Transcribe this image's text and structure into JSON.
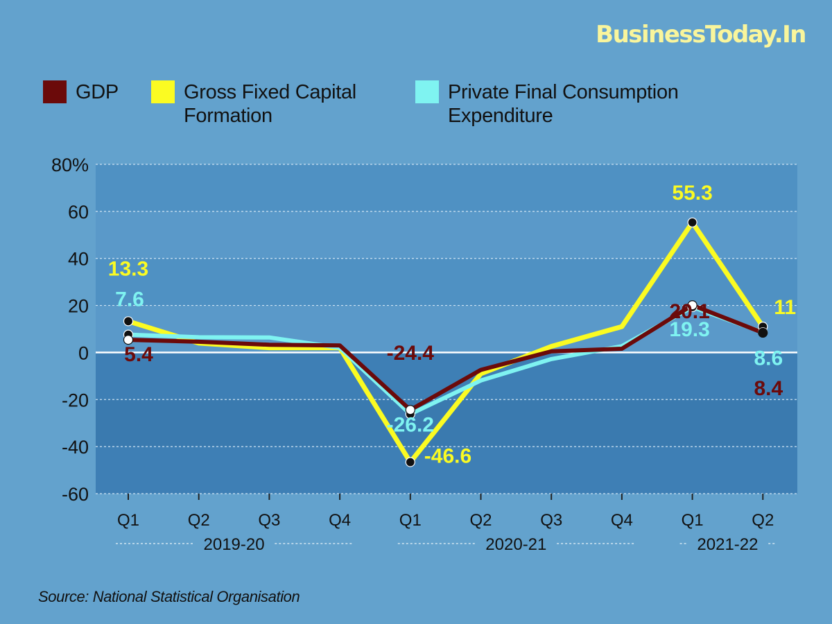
{
  "brand": {
    "name": "BusinessToday.In"
  },
  "legend": [
    {
      "label": "GDP",
      "color": "#6b0a0a"
    },
    {
      "label": "Gross Fixed Capital Formation",
      "color": "#fbfb22"
    },
    {
      "label": "Private Final Consumption Expenditure",
      "color": "#7ff3f1"
    }
  ],
  "source": "Source: National Statistical Organisation",
  "chart_data": {
    "type": "line",
    "x": [
      "Q1",
      "Q2",
      "Q3",
      "Q4",
      "Q1",
      "Q2",
      "Q3",
      "Q4",
      "Q1",
      "Q2"
    ],
    "groups": [
      {
        "label": "2019-20",
        "span": [
          0,
          3
        ]
      },
      {
        "label": "2020-21",
        "span": [
          4,
          7
        ]
      },
      {
        "label": "2021-22",
        "span": [
          8,
          9
        ]
      }
    ],
    "y_ticks": [
      "80%",
      "60",
      "40",
      "20",
      "0",
      "-20",
      "-40",
      "-60"
    ],
    "ylim": [
      -60,
      80
    ],
    "grid": true,
    "series": [
      {
        "name": "Gross Fixed Capital Formation",
        "color": "#fbfb22",
        "values": [
          13.3,
          4.0,
          2.0,
          2.0,
          -46.6,
          -9.0,
          2.6,
          11.0,
          55.3,
          11.0
        ],
        "labels": [
          {
            "index": 0,
            "text": "13.3"
          },
          {
            "index": 4,
            "text": "-46.6"
          },
          {
            "index": 8,
            "text": "55.3"
          },
          {
            "index": 9,
            "text": "11"
          }
        ]
      },
      {
        "name": "Private Final Consumption Expenditure",
        "color": "#7ff3f1",
        "values": [
          7.6,
          6.5,
          6.4,
          2.0,
          -26.2,
          -11.9,
          -2.8,
          2.7,
          19.3,
          8.6
        ],
        "labels": [
          {
            "index": 0,
            "text": "7.6"
          },
          {
            "index": 4,
            "text": "-26.2"
          },
          {
            "index": 8,
            "text": "19.3"
          },
          {
            "index": 9,
            "text": "8.6"
          }
        ]
      },
      {
        "name": "GDP",
        "color": "#6b0a0a",
        "values": [
          5.4,
          4.6,
          3.3,
          3.0,
          -24.4,
          -7.4,
          0.5,
          1.6,
          20.1,
          8.4
        ],
        "labels": [
          {
            "index": 0,
            "text": "5.4"
          },
          {
            "index": 4,
            "text": "-24.4"
          },
          {
            "index": 8,
            "text": "20.1"
          },
          {
            "index": 9,
            "text": "8.4"
          }
        ]
      }
    ]
  }
}
